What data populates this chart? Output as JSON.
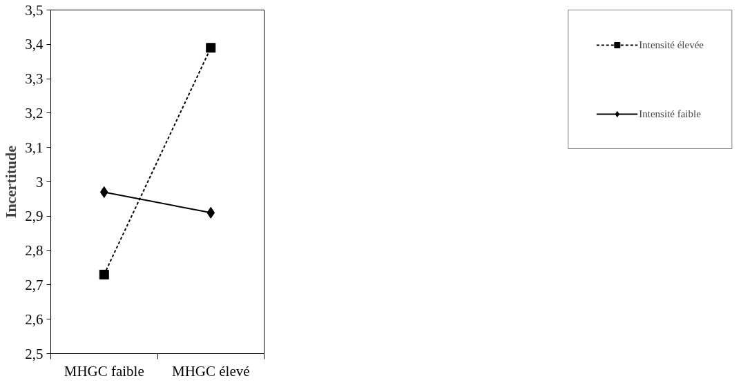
{
  "chart_data": {
    "type": "line",
    "ylabel": "Incertitude",
    "categories": [
      "MHGC faible",
      "MHGC élevé"
    ],
    "series": [
      {
        "name": "Intensité élevée",
        "color": "#000000",
        "values": [
          2.73,
          3.39
        ],
        "marker": "square",
        "line_style": "dashed"
      },
      {
        "name": "Intensité faible",
        "color": "#000000",
        "values": [
          2.97,
          2.91
        ],
        "marker": "diamond",
        "line_style": "solid"
      }
    ],
    "ylim": [
      2.5,
      3.5
    ],
    "yticks": [
      {
        "value": 2.5,
        "label": "2,5"
      },
      {
        "value": 2.6,
        "label": "2,6"
      },
      {
        "value": 2.7,
        "label": "2,7"
      },
      {
        "value": 2.8,
        "label": "2,8"
      },
      {
        "value": 2.9,
        "label": "2,9"
      },
      {
        "value": 3,
        "label": "3"
      },
      {
        "value": 3.1,
        "label": "3,1"
      },
      {
        "value": 3.2,
        "label": "3,2"
      },
      {
        "value": 3.3,
        "label": "3,3"
      },
      {
        "value": 3.4,
        "label": "3,4"
      },
      {
        "value": 3.5,
        "label": "3,5"
      }
    ],
    "grid": false,
    "legend": "right"
  }
}
